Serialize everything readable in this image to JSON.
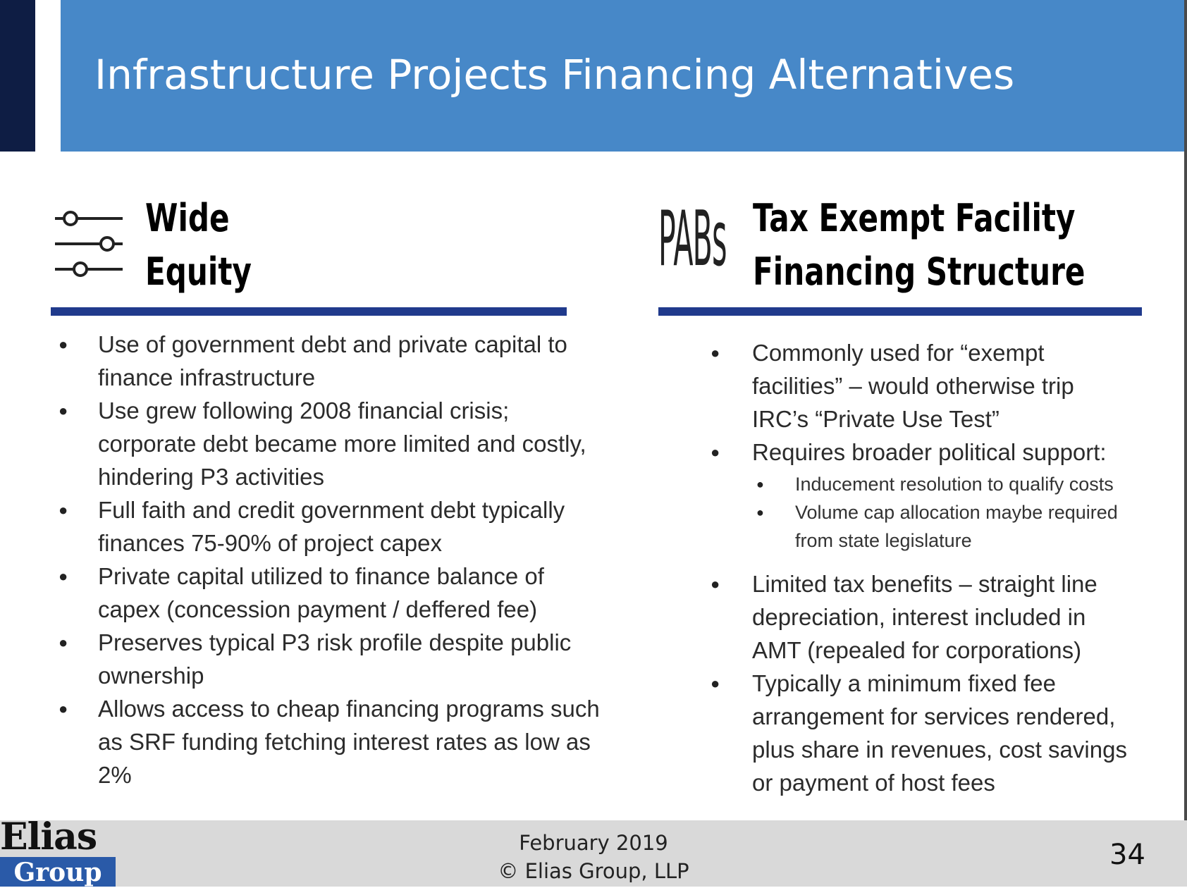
{
  "slide": {
    "title": "Infrastructure Projects Financing Alternatives",
    "left": {
      "icon": "sliders-icon",
      "heading_line1": "Wide",
      "heading_line2": "Equity",
      "bullets": [
        "Use of government debt and private capital to finance infrastructure",
        "Use grew following 2008 financial crisis; corporate debt became more limited and costly, hindering P3 activities",
        "Full faith and credit government debt typically finances 75-90% of project capex",
        "Private capital utilized to finance balance of capex (concession payment / deffered fee)",
        "Preserves typical P3 risk profile despite public ownership",
        "Allows access to cheap financing programs such as SRF funding fetching interest rates as low as 2%"
      ]
    },
    "right": {
      "icon_text": "PABs",
      "heading_line1": "Tax Exempt Facility",
      "heading_line2": "Financing Structure",
      "bullets": [
        "Commonly used for “exempt facilities” – would otherwise trip IRC’s “Private Use Test”",
        "Requires broader political support:",
        "Limited tax benefits – straight line depreciation, interest included in AMT (repealed for corporations)",
        "Typically a minimum fixed fee arrangement for services rendered, plus share in revenues, cost savings or payment of host fees"
      ],
      "sub_bullets": [
        "Inducement resolution to qualify costs",
        "Volume cap allocation maybe required from state legislature"
      ]
    },
    "footer": {
      "date": "February 2019",
      "copyright": "© Elias Group, LLP",
      "page_number": "34",
      "logo_top": "Elias",
      "logo_bottom": "Group"
    },
    "colors": {
      "title_band": "#4788c8",
      "left_bar": "#0e1d44",
      "rule": "#203a8c",
      "footer": "#d9d9d9"
    }
  }
}
